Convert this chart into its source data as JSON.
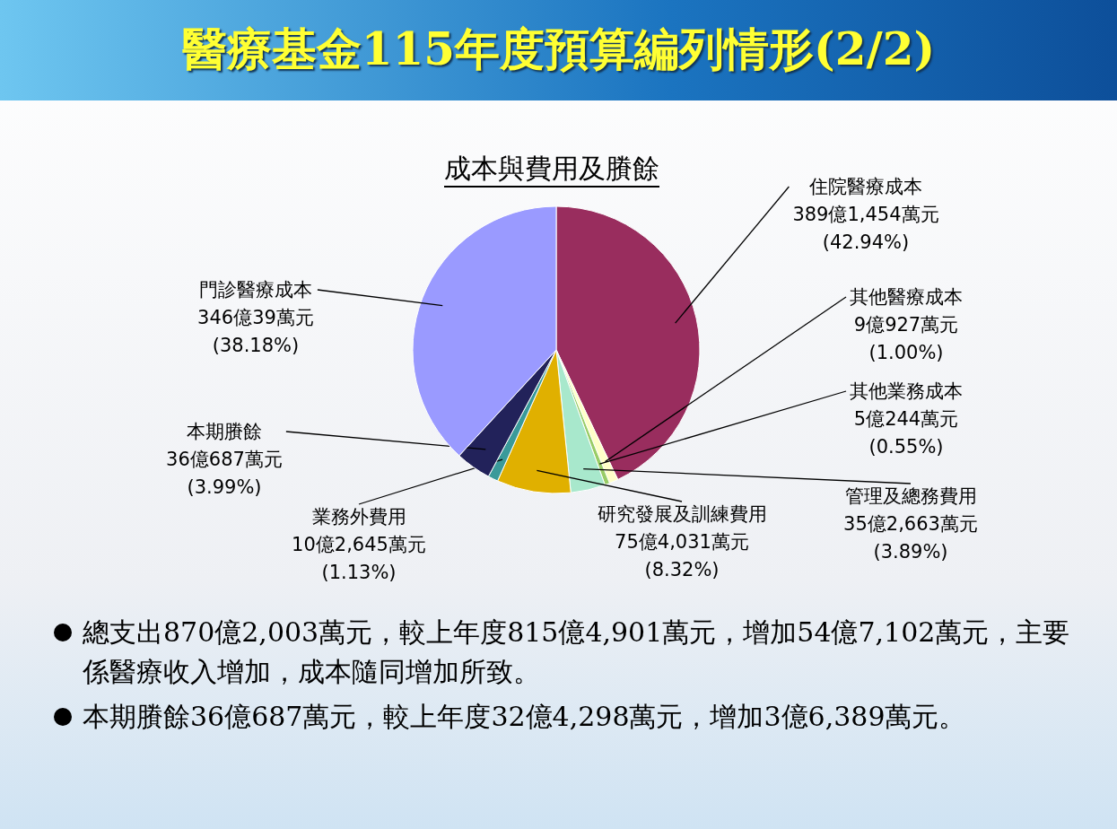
{
  "chart_data": {
    "type": "pie",
    "title": "醫療基金115年度預算編列情形(2/2)",
    "subtitle": "成本與費用及賸餘",
    "categories": [
      "住院醫療成本",
      "其他醫療成本",
      "其他業務成本",
      "管理及總務費用",
      "研究發展及訓練費用",
      "業務外費用",
      "本期賸餘",
      "門診醫療成本"
    ],
    "values": [
      42.94,
      1.0,
      0.55,
      3.89,
      8.32,
      1.13,
      3.99,
      38.18
    ],
    "colors": [
      "#992d5e",
      "#ffffc8",
      "#99cc66",
      "#a8e8cc",
      "#e0b000",
      "#3a9a9a",
      "#22225a",
      "#9a9aff"
    ],
    "value_labels": [
      "389億1,454萬元\n(42.94%)",
      "9億927萬元\n(1.00%)",
      "5億244萬元\n(0.55%)",
      "35億2,663萬元\n(3.89%)",
      "75億4,031萬元\n(8.32%)",
      "10億2,645萬元\n(1.13%)",
      "36億687萬元\n(3.99%)",
      "346億39萬元\n(38.18%)"
    ],
    "annotations": [
      "總支出870億2,003萬元，較上年度815億4,901萬元，增加54億7,102萬元，主要係醫療收入增加，成本隨同增加所致。",
      "本期賸餘36億687萬元，較上年度32億4,298萬元，增加3億6,389萬元。"
    ]
  }
}
